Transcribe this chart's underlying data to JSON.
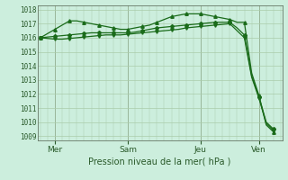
{
  "background_color": "#cceedd",
  "grid_color": "#aaccaa",
  "line_color": "#1a6b1a",
  "title": "Pression niveau de la mer( hPa )",
  "ylabel_vals": [
    1009,
    1010,
    1011,
    1012,
    1013,
    1014,
    1015,
    1016,
    1017,
    1018
  ],
  "ylim": [
    1008.7,
    1018.3
  ],
  "day_labels": [
    "Mer",
    "Sam",
    "Jeu",
    "Ven"
  ],
  "day_ticks": [
    0.5,
    3.0,
    5.5,
    7.5
  ],
  "xlim": [
    -0.1,
    8.3
  ],
  "x_vals": [
    0.0,
    0.25,
    0.5,
    0.75,
    1.0,
    1.25,
    1.5,
    1.75,
    2.0,
    2.25,
    2.5,
    2.75,
    3.0,
    3.25,
    3.5,
    3.75,
    4.0,
    4.25,
    4.5,
    4.75,
    5.0,
    5.25,
    5.5,
    5.75,
    6.0,
    6.25,
    6.5,
    6.75,
    7.0,
    7.25,
    7.5,
    7.75,
    8.0
  ],
  "values_main": [
    1016.0,
    1016.05,
    1016.1,
    1016.15,
    1016.2,
    1016.25,
    1016.3,
    1016.35,
    1016.35,
    1016.35,
    1016.35,
    1016.35,
    1016.35,
    1016.4,
    1016.5,
    1016.6,
    1016.7,
    1016.75,
    1016.8,
    1016.85,
    1016.9,
    1016.95,
    1017.0,
    1017.05,
    1017.1,
    1017.1,
    1017.1,
    1016.7,
    1016.2,
    1013.3,
    1011.8,
    1010.0,
    1009.5
  ],
  "values_high": [
    1016.0,
    1016.3,
    1016.6,
    1016.9,
    1017.2,
    1017.2,
    1017.1,
    1017.0,
    1016.9,
    1016.8,
    1016.7,
    1016.6,
    1016.6,
    1016.7,
    1016.8,
    1016.9,
    1017.1,
    1017.3,
    1017.5,
    1017.6,
    1017.7,
    1017.7,
    1017.7,
    1017.6,
    1017.5,
    1017.4,
    1017.3,
    1017.1,
    1017.1,
    1013.5,
    1011.9,
    1009.8,
    1009.3
  ],
  "values_low": [
    1016.0,
    1015.95,
    1015.9,
    1015.9,
    1015.95,
    1016.0,
    1016.05,
    1016.1,
    1016.15,
    1016.2,
    1016.2,
    1016.2,
    1016.25,
    1016.3,
    1016.35,
    1016.4,
    1016.45,
    1016.5,
    1016.55,
    1016.6,
    1016.7,
    1016.75,
    1016.8,
    1016.85,
    1016.9,
    1016.95,
    1017.0,
    1016.5,
    1016.0,
    1013.2,
    1011.7,
    1009.9,
    1009.4
  ]
}
